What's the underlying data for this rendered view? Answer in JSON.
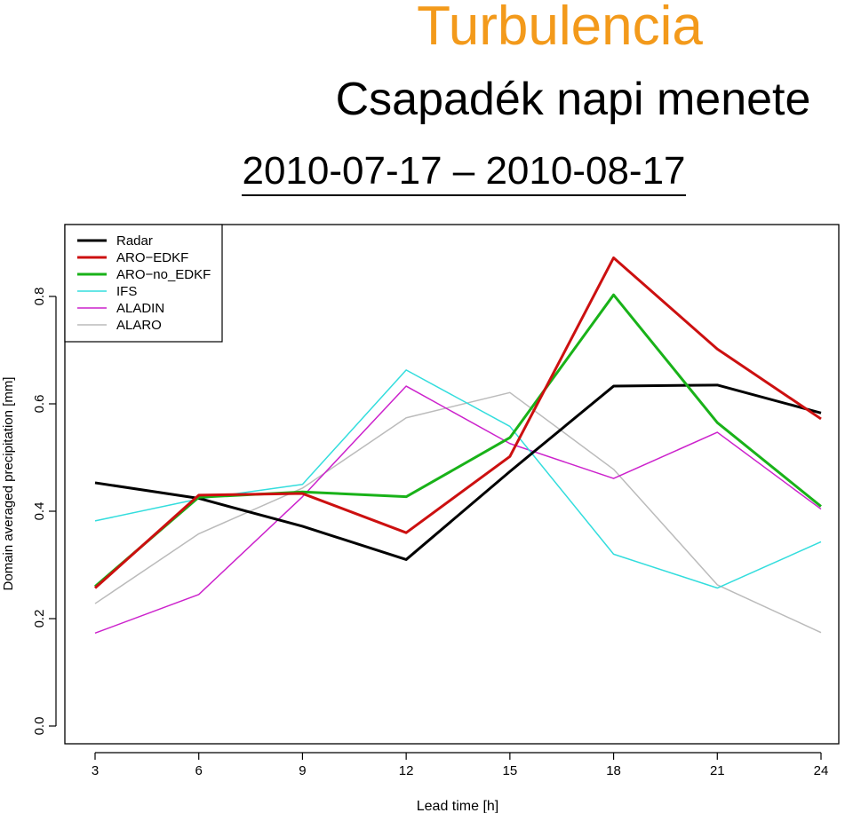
{
  "header": {
    "title": "Turbulencia",
    "subtitle": "Csapadék napi menete",
    "date_range": "2010-07-17 – 2010-08-17"
  },
  "colors": {
    "title": "#F39A1B",
    "radar": "#000000",
    "aro_edkf": "#CC1010",
    "aro_no_edkf": "#19B219",
    "ifs": "#33DDDD",
    "aladin": "#CC22CC",
    "alaro": "#BBBBBB"
  },
  "chart_data": {
    "type": "line",
    "title": "",
    "xlabel": "Lead time [h]",
    "ylabel": "Domain averaged precipitation [mm]",
    "x": [
      3,
      6,
      9,
      12,
      15,
      18,
      21,
      24
    ],
    "x_tick_labels": [
      "3",
      "6",
      "9",
      "12",
      "15",
      "18",
      "21",
      "24"
    ],
    "y_tick_labels": [
      "0.0",
      "0.2",
      "0.4",
      "0.6",
      "0.8"
    ],
    "y_ticks": [
      0.0,
      0.2,
      0.4,
      0.6,
      0.8
    ],
    "xlim": [
      3,
      24
    ],
    "ylim": [
      0.0,
      0.8
    ],
    "grid": false,
    "legend_position": "top-left",
    "series": [
      {
        "key": "radar",
        "name": "Radar",
        "color": "#000000",
        "width": 3,
        "values": [
          0.453,
          0.424,
          0.372,
          0.31,
          0.474,
          0.633,
          0.635,
          0.583
        ]
      },
      {
        "key": "aro_edkf",
        "name": "ARO−EDKF",
        "color": "#CC1010",
        "width": 3,
        "values": [
          0.257,
          0.43,
          0.433,
          0.36,
          0.502,
          0.872,
          0.702,
          0.572
        ]
      },
      {
        "key": "aro_no_edkf",
        "name": "ARO−no_EDKF",
        "color": "#19B219",
        "width": 3,
        "values": [
          0.26,
          0.426,
          0.436,
          0.427,
          0.537,
          0.803,
          0.565,
          0.409
        ]
      },
      {
        "key": "ifs",
        "name": "IFS",
        "color": "#33DDDD",
        "width": 1.5,
        "values": [
          0.382,
          0.423,
          0.45,
          0.663,
          0.558,
          0.32,
          0.257,
          0.343
        ]
      },
      {
        "key": "aladin",
        "name": "ALADIN",
        "color": "#CC22CC",
        "width": 1.5,
        "values": [
          0.173,
          0.245,
          0.427,
          0.633,
          0.526,
          0.461,
          0.547,
          0.404
        ]
      },
      {
        "key": "alaro",
        "name": "ALARO",
        "color": "#BBBBBB",
        "width": 1.5,
        "values": [
          0.228,
          0.358,
          0.443,
          0.574,
          0.621,
          0.478,
          0.263,
          0.174
        ]
      }
    ]
  }
}
